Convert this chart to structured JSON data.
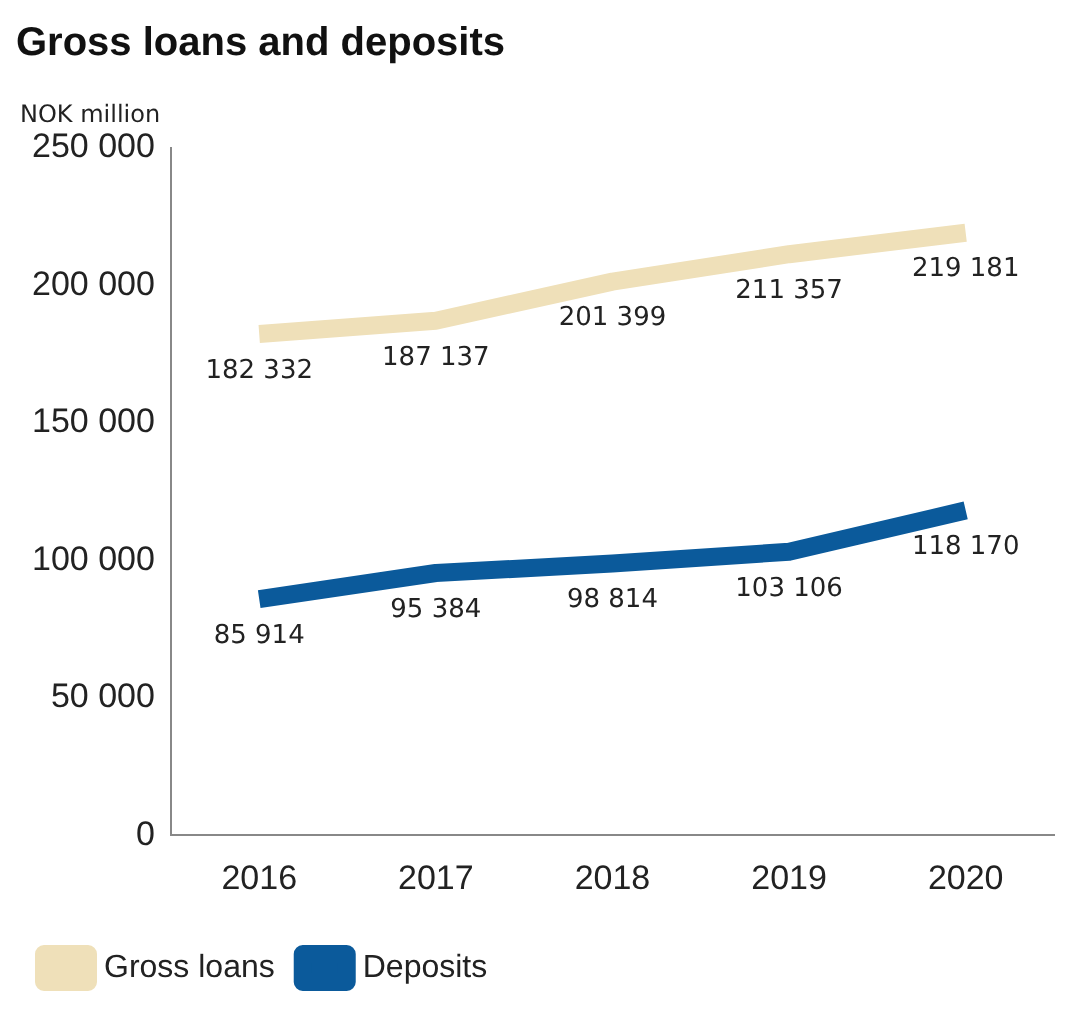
{
  "chart_data": {
    "type": "line",
    "title": "Gross loans and deposits",
    "ylabel": "NOK million",
    "categories": [
      "2016",
      "2017",
      "2018",
      "2019",
      "2020"
    ],
    "series": [
      {
        "name": "Gross loans",
        "color": "#efe0b9",
        "values": [
          182332,
          187137,
          201399,
          211357,
          219181
        ],
        "value_labels": [
          "182 332",
          "187 137",
          "201 399",
          "211 357",
          "219 181"
        ]
      },
      {
        "name": "Deposits",
        "color": "#0b5a9b",
        "values": [
          85914,
          95384,
          98814,
          103106,
          118170
        ],
        "value_labels": [
          "85 914",
          "95 384",
          "98 814",
          "103 106",
          "118 170"
        ]
      }
    ],
    "ylim": [
      0,
      250000
    ],
    "yticks": [
      {
        "value": 0,
        "label": "0"
      },
      {
        "value": 50000,
        "label": "50 000"
      },
      {
        "value": 100000,
        "label": "100 000"
      },
      {
        "value": 150000,
        "label": "150 000"
      },
      {
        "value": 200000,
        "label": "200 000"
      },
      {
        "value": 250000,
        "label": "250 000"
      }
    ],
    "grid": false,
    "legend": "bottom",
    "marker": "none"
  }
}
